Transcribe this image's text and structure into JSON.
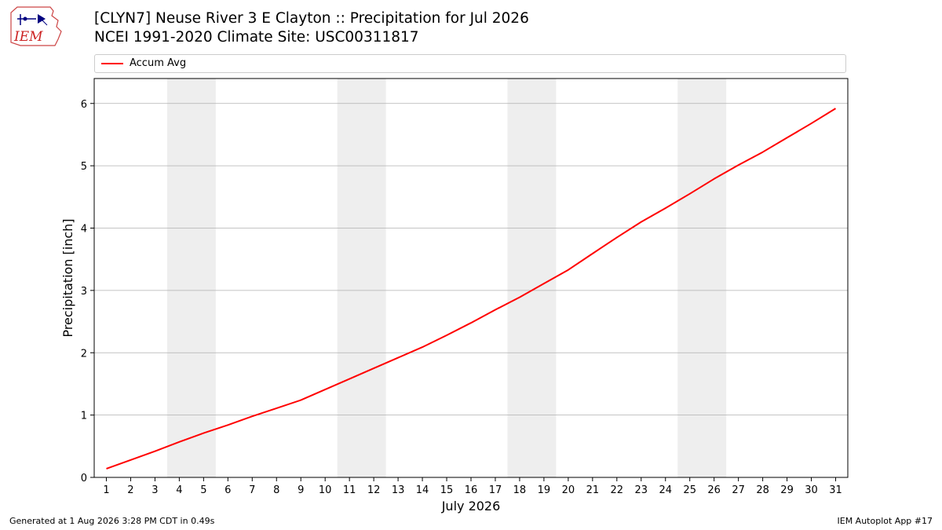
{
  "header": {
    "title_line1": "[CLYN7] Neuse River 3 E Clayton :: Precipitation for Jul 2026",
    "title_line2": "NCEI 1991-2020 Climate Site: USC00311817"
  },
  "logo": {
    "text": "IEM",
    "icon": "iem-logo-icon"
  },
  "legend": {
    "placement": "top",
    "items": [
      {
        "label": "Accum Avg",
        "color": "#ff0000"
      }
    ]
  },
  "footer": {
    "left": "Generated at 1 Aug 2026 3:28 PM CDT in 0.49s",
    "right": "IEM Autoplot App #17"
  },
  "colors": {
    "line": "#ff0000",
    "weekend_band": "#eeeeee",
    "grid": "#b0b0b0"
  },
  "chart_data": {
    "type": "line",
    "title": "[CLYN7] Neuse River 3 E Clayton :: Precipitation for Jul 2026",
    "xlabel": "July 2026",
    "ylabel": "Precipitation [inch]",
    "x": [
      1,
      2,
      3,
      4,
      5,
      6,
      7,
      8,
      9,
      10,
      11,
      12,
      13,
      14,
      15,
      16,
      17,
      18,
      19,
      20,
      21,
      22,
      23,
      24,
      25,
      26,
      27,
      28,
      29,
      30,
      31
    ],
    "xlim": [
      0.5,
      31.5
    ],
    "ylim": [
      0,
      6.4
    ],
    "yticks": [
      0,
      1,
      2,
      3,
      4,
      5,
      6
    ],
    "grid": "y",
    "shaded_x_ranges": [
      [
        3.5,
        5.5
      ],
      [
        10.5,
        12.5
      ],
      [
        17.5,
        19.5
      ],
      [
        24.5,
        26.5
      ]
    ],
    "series": [
      {
        "name": "Accum Avg",
        "color": "#ff0000",
        "values": [
          0.14,
          0.28,
          0.42,
          0.57,
          0.71,
          0.84,
          0.98,
          1.11,
          1.24,
          1.41,
          1.58,
          1.75,
          1.92,
          2.09,
          2.28,
          2.48,
          2.69,
          2.89,
          3.11,
          3.33,
          3.59,
          3.85,
          4.1,
          4.32,
          4.55,
          4.79,
          5.01,
          5.22,
          5.45,
          5.68,
          5.92
        ]
      }
    ]
  }
}
